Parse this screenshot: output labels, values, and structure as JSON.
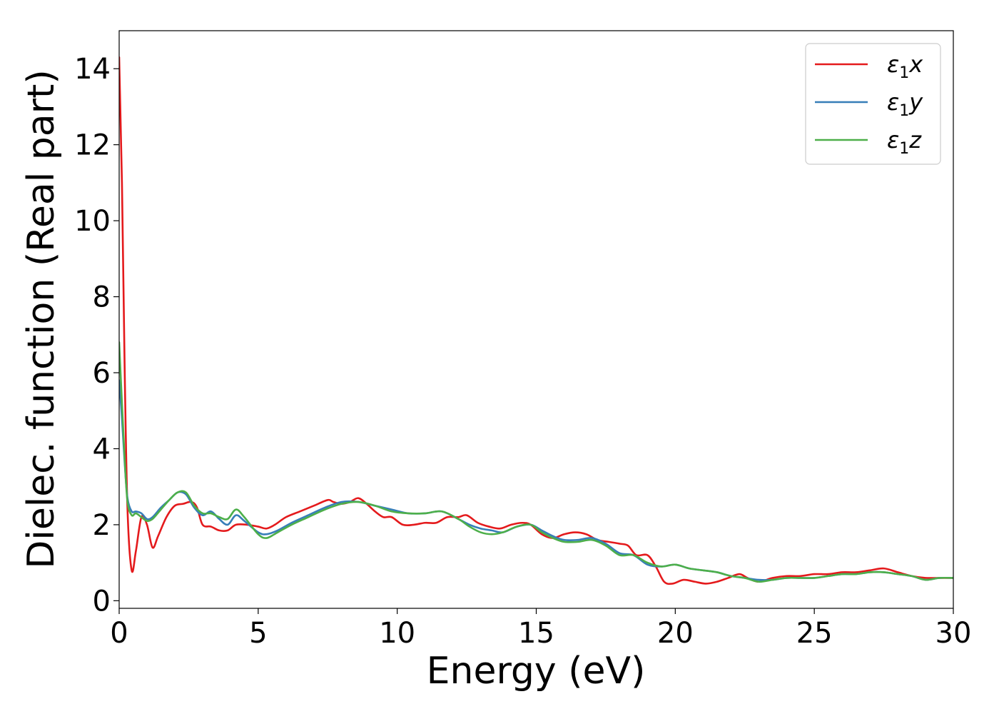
{
  "chart_data": {
    "type": "line",
    "xlabel": "Energy (eV)",
    "ylabel": "Dielec. function (Real part)",
    "xlim": [
      0,
      30
    ],
    "ylim": [
      -0.2,
      15
    ],
    "xticks": [
      0,
      5,
      10,
      15,
      20,
      25,
      30
    ],
    "yticks": [
      0,
      2,
      4,
      6,
      8,
      10,
      12,
      14
    ],
    "grid": false,
    "legend_position": "top-right",
    "series": [
      {
        "name": "ε₁x",
        "legend": {
          "base": "ε",
          "sub": "1",
          "axis": "x"
        },
        "color": "#e41a1c",
        "x": [
          0,
          0.1,
          0.2,
          0.3,
          0.45,
          0.6,
          0.8,
          1.0,
          1.2,
          1.4,
          1.7,
          2.0,
          2.3,
          2.6,
          2.8,
          3.0,
          3.3,
          3.6,
          3.9,
          4.2,
          4.6,
          5.0,
          5.3,
          5.6,
          6.0,
          6.5,
          7.0,
          7.5,
          7.7,
          8.0,
          8.3,
          8.6,
          8.9,
          9.2,
          9.5,
          9.8,
          10.2,
          10.6,
          11.0,
          11.4,
          11.8,
          12.2,
          12.5,
          12.9,
          13.3,
          13.7,
          14.1,
          14.5,
          14.8,
          15.2,
          15.6,
          16.0,
          16.4,
          16.8,
          17.2,
          17.6,
          18.0,
          18.3,
          18.6,
          19.0,
          19.3,
          19.6,
          19.9,
          20.3,
          20.7,
          21.1,
          21.5,
          21.9,
          22.3,
          22.6,
          23.0,
          23.5,
          24.0,
          24.5,
          25.0,
          25.5,
          26.0,
          26.5,
          27.0,
          27.5,
          28.0,
          28.5,
          29.0,
          29.5,
          30.0
        ],
        "values": [
          14.3,
          11.0,
          6.0,
          2.4,
          0.8,
          1.3,
          2.2,
          2.0,
          1.4,
          1.7,
          2.2,
          2.5,
          2.55,
          2.6,
          2.45,
          2.0,
          1.95,
          1.85,
          1.85,
          2.0,
          2.0,
          1.95,
          1.9,
          2.0,
          2.2,
          2.35,
          2.5,
          2.65,
          2.6,
          2.55,
          2.6,
          2.7,
          2.55,
          2.35,
          2.2,
          2.2,
          2.0,
          2.0,
          2.05,
          2.05,
          2.2,
          2.2,
          2.25,
          2.05,
          1.95,
          1.9,
          2.0,
          2.05,
          2.0,
          1.75,
          1.65,
          1.75,
          1.8,
          1.75,
          1.6,
          1.55,
          1.5,
          1.45,
          1.2,
          1.2,
          0.9,
          0.5,
          0.45,
          0.55,
          0.5,
          0.45,
          0.5,
          0.6,
          0.7,
          0.6,
          0.5,
          0.6,
          0.65,
          0.65,
          0.7,
          0.7,
          0.75,
          0.75,
          0.8,
          0.85,
          0.75,
          0.65,
          0.6,
          0.6,
          0.6
        ]
      },
      {
        "name": "ε₁y",
        "legend": {
          "base": "ε",
          "sub": "1",
          "axis": "y"
        },
        "color": "#377eb8",
        "x": [
          0,
          0.1,
          0.2,
          0.3,
          0.45,
          0.6,
          0.8,
          1.0,
          1.2,
          1.5,
          1.8,
          2.1,
          2.4,
          2.7,
          3.0,
          3.3,
          3.6,
          3.9,
          4.2,
          4.5,
          5.0,
          5.3,
          5.7,
          6.2,
          6.8,
          7.4,
          8.0,
          8.6,
          9.2,
          9.8,
          10.4,
          11.0,
          11.6,
          12.2,
          12.6,
          13.0,
          13.4,
          13.8,
          14.3,
          14.8,
          15.2,
          15.6,
          16.0,
          16.5,
          17.0,
          17.5,
          18.0,
          18.5,
          19.0,
          19.5,
          20.0,
          20.5,
          21.0,
          21.5,
          22.0,
          22.5,
          23.0,
          23.5,
          24.0,
          24.5,
          25.0,
          25.5,
          26.0,
          26.5,
          27.0,
          27.5,
          28.0,
          28.5,
          29.0,
          29.5,
          30.0
        ],
        "values": [
          5.8,
          4.8,
          3.6,
          2.7,
          2.35,
          2.35,
          2.3,
          2.15,
          2.2,
          2.45,
          2.65,
          2.85,
          2.8,
          2.45,
          2.25,
          2.35,
          2.15,
          2.0,
          2.25,
          2.1,
          1.8,
          1.75,
          1.85,
          2.05,
          2.25,
          2.45,
          2.6,
          2.6,
          2.5,
          2.4,
          2.3,
          2.3,
          2.35,
          2.15,
          2.0,
          1.9,
          1.85,
          1.8,
          1.95,
          2.0,
          1.85,
          1.7,
          1.6,
          1.6,
          1.65,
          1.5,
          1.25,
          1.2,
          0.95,
          0.9,
          0.95,
          0.85,
          0.8,
          0.75,
          0.65,
          0.6,
          0.55,
          0.55,
          0.6,
          0.6,
          0.6,
          0.65,
          0.7,
          0.7,
          0.75,
          0.75,
          0.7,
          0.65,
          0.55,
          0.6,
          0.6
        ]
      },
      {
        "name": "ε₁z",
        "legend": {
          "base": "ε",
          "sub": "1",
          "axis": "z"
        },
        "color": "#4daf4a",
        "x": [
          0,
          0.1,
          0.2,
          0.3,
          0.45,
          0.6,
          0.8,
          1.0,
          1.2,
          1.5,
          1.8,
          2.1,
          2.4,
          2.7,
          3.0,
          3.3,
          3.6,
          3.9,
          4.2,
          4.5,
          5.0,
          5.3,
          5.7,
          6.2,
          6.8,
          7.4,
          8.0,
          8.6,
          9.2,
          9.8,
          10.4,
          11.0,
          11.6,
          12.2,
          12.6,
          13.0,
          13.4,
          13.8,
          14.3,
          14.8,
          15.2,
          15.6,
          16.0,
          16.5,
          17.0,
          17.5,
          18.0,
          18.5,
          19.0,
          19.5,
          20.0,
          20.5,
          21.0,
          21.5,
          22.0,
          22.5,
          23.0,
          23.5,
          24.0,
          24.5,
          25.0,
          25.5,
          26.0,
          26.5,
          27.0,
          27.5,
          28.0,
          28.5,
          29.0,
          29.5,
          30.0
        ],
        "values": [
          6.8,
          5.2,
          3.7,
          2.6,
          2.25,
          2.3,
          2.2,
          2.1,
          2.15,
          2.4,
          2.65,
          2.85,
          2.85,
          2.5,
          2.3,
          2.3,
          2.2,
          2.15,
          2.4,
          2.2,
          1.75,
          1.65,
          1.8,
          2.0,
          2.2,
          2.4,
          2.55,
          2.6,
          2.5,
          2.35,
          2.3,
          2.3,
          2.35,
          2.15,
          1.95,
          1.8,
          1.75,
          1.8,
          1.95,
          2.0,
          1.8,
          1.65,
          1.55,
          1.55,
          1.6,
          1.45,
          1.2,
          1.2,
          1.0,
          0.9,
          0.95,
          0.85,
          0.8,
          0.75,
          0.65,
          0.6,
          0.5,
          0.55,
          0.6,
          0.6,
          0.6,
          0.65,
          0.7,
          0.7,
          0.75,
          0.75,
          0.7,
          0.65,
          0.55,
          0.6,
          0.6
        ]
      }
    ]
  }
}
